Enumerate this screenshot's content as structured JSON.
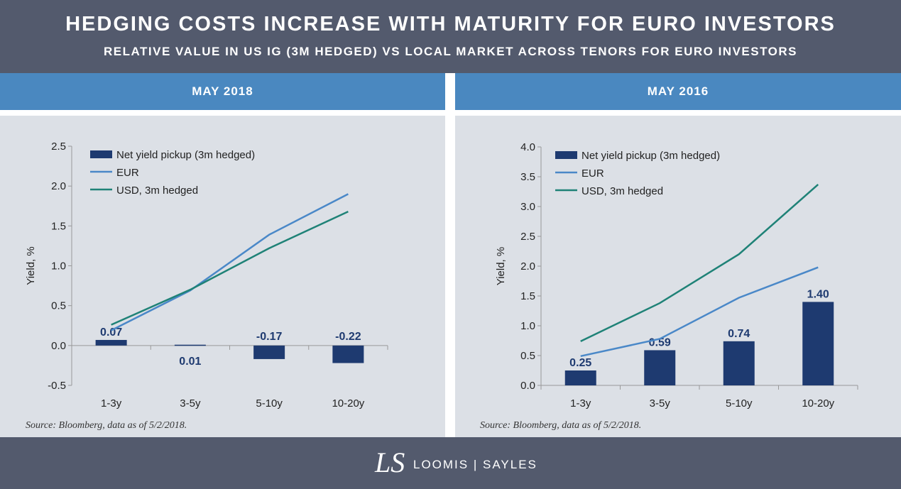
{
  "header": {
    "title": "HEDGING COSTS INCREASE WITH MATURITY FOR EURO INVESTORS",
    "subtitle": "RELATIVE VALUE IN US IG (3M HEDGED) VS LOCAL MARKET ACROSS TENORS FOR EURO INVESTORS"
  },
  "footer": {
    "logo": "LS",
    "brand_left": "LOOMIS",
    "brand_right": "SAYLES"
  },
  "colors": {
    "bar": "#1e3a70",
    "eur": "#4a88c8",
    "usd": "#1f8277",
    "header": "#535a6d",
    "band": "#4a88c0"
  },
  "chart_data": [
    {
      "type": "bar",
      "title": "MAY 2018",
      "ylabel": "Yield, %",
      "ylim": [
        -0.5,
        2.5
      ],
      "yticks": [
        "-0.5",
        "0.0",
        "0.5",
        "1.0",
        "1.5",
        "2.0",
        "2.5"
      ],
      "categories": [
        "1-3y",
        "3-5y",
        "5-10y",
        "10-20y"
      ],
      "series": [
        {
          "name": "Net yield pickup (3m hedged)",
          "type": "bar",
          "values": [
            0.07,
            0.01,
            -0.17,
            -0.22
          ],
          "labels": [
            "0.07",
            "0.01",
            "-0.17",
            "-0.22"
          ]
        },
        {
          "name": "EUR",
          "type": "line",
          "values": [
            0.19,
            0.69,
            1.39,
            1.9
          ]
        },
        {
          "name": "USD, 3m hedged",
          "type": "line",
          "values": [
            0.26,
            0.7,
            1.22,
            1.68
          ]
        }
      ],
      "legend": "top-left",
      "source": "Source: Bloomberg, data as of 5/2/2018."
    },
    {
      "type": "bar",
      "title": "MAY 2016",
      "ylabel": "Yield, %",
      "ylim": [
        0,
        4
      ],
      "yticks": [
        "0.0",
        "0.5",
        "1.0",
        "1.5",
        "2.0",
        "2.5",
        "3.0",
        "3.5",
        "4.0"
      ],
      "categories": [
        "1-3y",
        "3-5y",
        "5-10y",
        "10-20y"
      ],
      "series": [
        {
          "name": "Net yield pickup (3m hedged)",
          "type": "bar",
          "values": [
            0.25,
            0.59,
            0.74,
            1.4
          ],
          "labels": [
            "0.25",
            "0.59",
            "0.74",
            "1.40"
          ]
        },
        {
          "name": "EUR",
          "type": "line",
          "values": [
            0.49,
            0.78,
            1.47,
            1.98
          ]
        },
        {
          "name": "USD, 3m hedged",
          "type": "line",
          "values": [
            0.74,
            1.38,
            2.2,
            3.37
          ]
        }
      ],
      "legend": "top-left",
      "source": "Source: Bloomberg, data as of 5/2/2018."
    }
  ]
}
